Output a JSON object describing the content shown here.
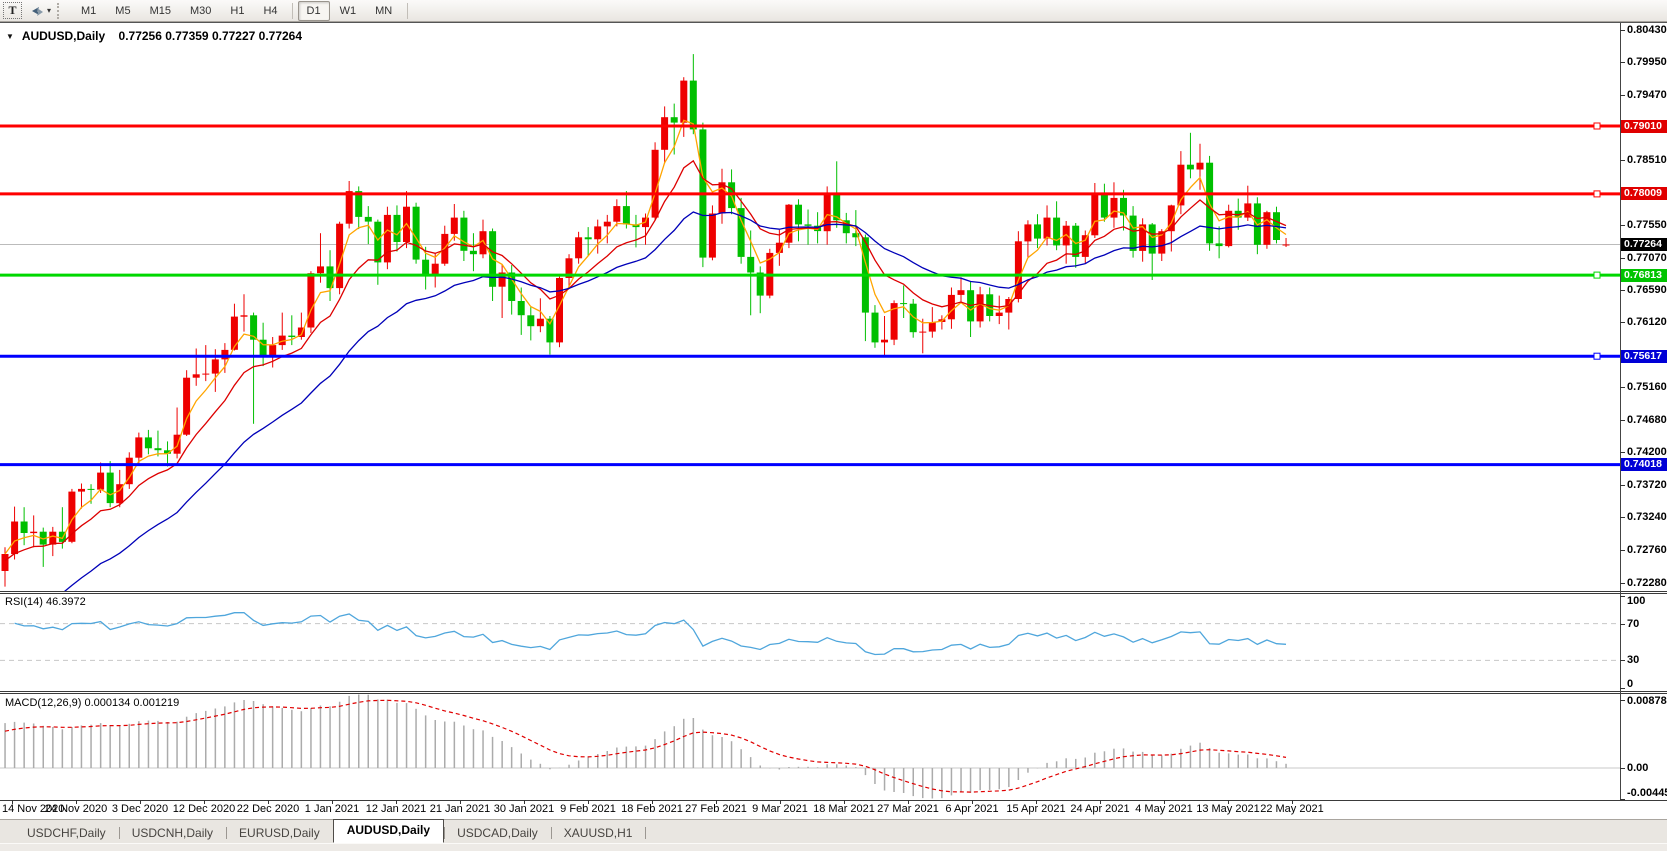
{
  "toolbar": {
    "text_tool_label": "T",
    "timeframes": [
      "M1",
      "M5",
      "M15",
      "M30",
      "H1",
      "H4",
      "D1",
      "W1",
      "MN"
    ],
    "active_timeframe": "D1"
  },
  "chart": {
    "title_symbol": "AUDUSD,Daily",
    "title_ohlc": "0.77256 0.77359 0.77227 0.77264"
  },
  "rsi_panel": {
    "label": "RSI(14) 46.3972",
    "axis_labels": [
      "100",
      "70",
      "30",
      "0"
    ],
    "levels": [
      70,
      30
    ]
  },
  "macd_panel": {
    "label": "MACD(12,26,9) 0.000134 0.001219",
    "axis_labels": [
      "0.008782",
      "0.00",
      "-0.00445"
    ]
  },
  "tabs": [
    "USDCHF,Daily",
    "USDCNH,Daily",
    "EURUSD,Daily",
    "AUDUSD,Daily",
    "USDCAD,Daily",
    "XAUUSD,H1"
  ],
  "active_tab": "AUDUSD,Daily",
  "chart_data": {
    "type": "candlestick",
    "symbol": "AUDUSD",
    "timeframe": "Daily",
    "colors": {
      "bull": "#ee0000",
      "bear": "#00bf00",
      "rsi_line": "#4fa6dc",
      "macd_hist": "#ababab",
      "macd_signal": "#e00000",
      "ma_fast": "#ffa500",
      "ma_mid": "#dd0000",
      "ma_slow": "#0000b8",
      "current_line": "#bbbbbb"
    },
    "y_range": [
      0.7216,
      0.8047
    ],
    "y_ticks": [
      "0.80430",
      "0.79950",
      "0.79470",
      "0.78510",
      "0.77550",
      "0.77070",
      "0.76590",
      "0.76120",
      "0.75160",
      "0.74680",
      "0.74200",
      "0.73720",
      "0.73240",
      "0.72760",
      "0.72280"
    ],
    "horizontal_lines": [
      {
        "label": "0.79010",
        "price": 0.7901,
        "color": "#ff0000",
        "badge": "#e00000",
        "handle": true
      },
      {
        "label": "0.78009",
        "price": 0.78009,
        "color": "#ff0000",
        "badge": "#e00000",
        "handle": true
      },
      {
        "label": "0.76813",
        "price": 0.76813,
        "color": "#00d800",
        "badge": "#00c400",
        "handle": true
      },
      {
        "label": "0.75617",
        "price": 0.75617,
        "color": "#0000ff",
        "badge": "#0000d6",
        "handle": true
      },
      {
        "label": "0.74018",
        "price": 0.74018,
        "color": "#0000ff",
        "badge": "#0000d6",
        "handle": false
      }
    ],
    "current_price": {
      "label": "0.77264",
      "price": 0.77264,
      "badge": "#000000"
    },
    "x_labels": [
      "14 Nov 2020",
      "24 Nov 2020",
      "3 Dec 2020",
      "12 Dec 2020",
      "22 Dec 2020",
      "1 Jan 2021",
      "12 Jan 2021",
      "21 Jan 2021",
      "30 Jan 2021",
      "9 Feb 2021",
      "18 Feb 2021",
      "27 Feb 2021",
      "9 Mar 2021",
      "18 Mar 2021",
      "27 Mar 2021",
      "6 Apr 2021",
      "15 Apr 2021",
      "24 Apr 2021",
      "4 May 2021",
      "13 May 2021",
      "22 May 2021"
    ],
    "moving_averages": [
      {
        "period": 4,
        "seed": null,
        "color": "#ffa500"
      },
      {
        "period": 10,
        "seed": 0.7258,
        "color": "#dd0000"
      },
      {
        "period": 25,
        "seed": 0.715,
        "color": "#0000b8"
      }
    ],
    "indicators": {
      "rsi": {
        "period": 14,
        "value": "46.3972",
        "seed_gain": 0.002,
        "seed_loss": 0.001
      },
      "macd": {
        "fast": 12,
        "slow": 26,
        "signal": 9,
        "seed_fast": 0.724,
        "seed_slow": 0.718,
        "seed_signal": 0.0045,
        "values": [
          "0.000134",
          "0.001219"
        ]
      }
    },
    "candles": [
      [
        0.7245,
        0.728,
        0.7222,
        0.727
      ],
      [
        0.727,
        0.734,
        0.7262,
        0.7318
      ],
      [
        0.7318,
        0.7339,
        0.7283,
        0.7301
      ],
      [
        0.7301,
        0.7327,
        0.728,
        0.7303
      ],
      [
        0.7303,
        0.7309,
        0.7251,
        0.7284
      ],
      [
        0.7284,
        0.731,
        0.7267,
        0.7303
      ],
      [
        0.7303,
        0.7339,
        0.7278,
        0.7288
      ],
      [
        0.7288,
        0.7366,
        0.7286,
        0.7362
      ],
      [
        0.7362,
        0.7374,
        0.7337,
        0.7366
      ],
      [
        0.7366,
        0.7373,
        0.7344,
        0.7365
      ],
      [
        0.7365,
        0.7405,
        0.736,
        0.739
      ],
      [
        0.739,
        0.7407,
        0.7339,
        0.7345
      ],
      [
        0.7345,
        0.7394,
        0.7339,
        0.7373
      ],
      [
        0.7373,
        0.742,
        0.7366,
        0.7412
      ],
      [
        0.7412,
        0.7449,
        0.7401,
        0.7442
      ],
      [
        0.7442,
        0.7453,
        0.7417,
        0.7426
      ],
      [
        0.7426,
        0.7452,
        0.7414,
        0.7423
      ],
      [
        0.7423,
        0.7436,
        0.7399,
        0.7418
      ],
      [
        0.7418,
        0.7486,
        0.7411,
        0.7446
      ],
      [
        0.7446,
        0.7541,
        0.7444,
        0.753
      ],
      [
        0.753,
        0.7573,
        0.7518,
        0.7535
      ],
      [
        0.7535,
        0.7578,
        0.7525,
        0.7536
      ],
      [
        0.7536,
        0.7572,
        0.7509,
        0.7557
      ],
      [
        0.7557,
        0.7581,
        0.7537,
        0.7571
      ],
      [
        0.7571,
        0.7639,
        0.757,
        0.762
      ],
      [
        0.762,
        0.7653,
        0.7598,
        0.7622
      ],
      [
        0.7622,
        0.7626,
        0.7462,
        0.7586
      ],
      [
        0.7586,
        0.7611,
        0.7547,
        0.756
      ],
      [
        0.756,
        0.759,
        0.7545,
        0.7578
      ],
      [
        0.7578,
        0.7626,
        0.7571,
        0.7592
      ],
      [
        0.7592,
        0.7622,
        0.7578,
        0.759
      ],
      [
        0.759,
        0.7626,
        0.7586,
        0.7604
      ],
      [
        0.7604,
        0.7687,
        0.7596,
        0.7684
      ],
      [
        0.7684,
        0.7743,
        0.767,
        0.7694
      ],
      [
        0.7694,
        0.7718,
        0.7643,
        0.7662
      ],
      [
        0.7662,
        0.776,
        0.7653,
        0.7757
      ],
      [
        0.7757,
        0.782,
        0.775,
        0.7805
      ],
      [
        0.7805,
        0.7812,
        0.7749,
        0.7767
      ],
      [
        0.7767,
        0.7783,
        0.7727,
        0.776
      ],
      [
        0.776,
        0.7763,
        0.7667,
        0.77
      ],
      [
        0.77,
        0.7782,
        0.769,
        0.777
      ],
      [
        0.777,
        0.7784,
        0.7716,
        0.773
      ],
      [
        0.773,
        0.7805,
        0.7721,
        0.7782
      ],
      [
        0.7782,
        0.7788,
        0.7698,
        0.7704
      ],
      [
        0.7704,
        0.7723,
        0.766,
        0.768
      ],
      [
        0.768,
        0.7714,
        0.7663,
        0.7698
      ],
      [
        0.7698,
        0.7754,
        0.7695,
        0.7742
      ],
      [
        0.7742,
        0.7786,
        0.7732,
        0.7766
      ],
      [
        0.7766,
        0.7776,
        0.7702,
        0.7717
      ],
      [
        0.7717,
        0.7743,
        0.7687,
        0.7712
      ],
      [
        0.7712,
        0.7763,
        0.7706,
        0.7746
      ],
      [
        0.7746,
        0.775,
        0.7643,
        0.7664
      ],
      [
        0.7664,
        0.7697,
        0.7618,
        0.7685
      ],
      [
        0.7685,
        0.7696,
        0.7623,
        0.7643
      ],
      [
        0.7643,
        0.7663,
        0.7593,
        0.7622
      ],
      [
        0.7622,
        0.7634,
        0.7585,
        0.7606
      ],
      [
        0.7606,
        0.7647,
        0.7597,
        0.7617
      ],
      [
        0.7617,
        0.7621,
        0.7564,
        0.7582
      ],
      [
        0.7582,
        0.7679,
        0.7575,
        0.7677
      ],
      [
        0.7677,
        0.7712,
        0.7664,
        0.7706
      ],
      [
        0.7706,
        0.7745,
        0.7698,
        0.7737
      ],
      [
        0.7737,
        0.7752,
        0.771,
        0.7734
      ],
      [
        0.7734,
        0.7763,
        0.7713,
        0.7753
      ],
      [
        0.7753,
        0.777,
        0.7728,
        0.776
      ],
      [
        0.776,
        0.7793,
        0.7753,
        0.7783
      ],
      [
        0.7783,
        0.7805,
        0.775,
        0.7756
      ],
      [
        0.7756,
        0.777,
        0.7722,
        0.7752
      ],
      [
        0.7752,
        0.7772,
        0.7726,
        0.7766
      ],
      [
        0.7766,
        0.7877,
        0.7762,
        0.7866
      ],
      [
        0.7866,
        0.793,
        0.7846,
        0.7914
      ],
      [
        0.7914,
        0.7934,
        0.7859,
        0.7906
      ],
      [
        0.7906,
        0.7973,
        0.7885,
        0.7968
      ],
      [
        0.7968,
        0.8007,
        0.7889,
        0.7896
      ],
      [
        0.7896,
        0.7906,
        0.7693,
        0.7707
      ],
      [
        0.7707,
        0.7784,
        0.7703,
        0.7772
      ],
      [
        0.7772,
        0.7838,
        0.7757,
        0.7818
      ],
      [
        0.7818,
        0.7837,
        0.7771,
        0.778
      ],
      [
        0.778,
        0.7795,
        0.7698,
        0.7708
      ],
      [
        0.7708,
        0.7747,
        0.7622,
        0.7685
      ],
      [
        0.7685,
        0.7694,
        0.7625,
        0.7651
      ],
      [
        0.7651,
        0.772,
        0.7647,
        0.7714
      ],
      [
        0.7714,
        0.7748,
        0.7695,
        0.7729
      ],
      [
        0.7729,
        0.7786,
        0.7721,
        0.7785
      ],
      [
        0.7785,
        0.7793,
        0.7731,
        0.7756
      ],
      [
        0.7756,
        0.7778,
        0.7726,
        0.7754
      ],
      [
        0.7754,
        0.7774,
        0.7728,
        0.7746
      ],
      [
        0.7746,
        0.7812,
        0.7726,
        0.7803
      ],
      [
        0.7803,
        0.7849,
        0.7751,
        0.7762
      ],
      [
        0.7762,
        0.7773,
        0.7728,
        0.7743
      ],
      [
        0.7743,
        0.7777,
        0.7724,
        0.7737
      ],
      [
        0.7737,
        0.7741,
        0.7584,
        0.7626
      ],
      [
        0.7626,
        0.7637,
        0.7574,
        0.7582
      ],
      [
        0.7582,
        0.7621,
        0.7562,
        0.7586
      ],
      [
        0.7586,
        0.7644,
        0.7578,
        0.764
      ],
      [
        0.764,
        0.7666,
        0.7618,
        0.7639
      ],
      [
        0.7639,
        0.7646,
        0.7589,
        0.7597
      ],
      [
        0.7597,
        0.7617,
        0.7566,
        0.7598
      ],
      [
        0.7598,
        0.7634,
        0.7589,
        0.7612
      ],
      [
        0.7612,
        0.7622,
        0.7601,
        0.7616
      ],
      [
        0.7616,
        0.7663,
        0.7602,
        0.7652
      ],
      [
        0.7652,
        0.7678,
        0.764,
        0.7659
      ],
      [
        0.7659,
        0.7672,
        0.759,
        0.7613
      ],
      [
        0.7613,
        0.7664,
        0.7604,
        0.7653
      ],
      [
        0.7653,
        0.7663,
        0.7613,
        0.7621
      ],
      [
        0.7621,
        0.7651,
        0.7609,
        0.7626
      ],
      [
        0.7626,
        0.7649,
        0.7601,
        0.7646
      ],
      [
        0.7646,
        0.7746,
        0.7641,
        0.7731
      ],
      [
        0.7731,
        0.7762,
        0.7708,
        0.7756
      ],
      [
        0.7756,
        0.7771,
        0.7721,
        0.7735
      ],
      [
        0.7735,
        0.7784,
        0.7725,
        0.7766
      ],
      [
        0.7766,
        0.779,
        0.7718,
        0.7725
      ],
      [
        0.7725,
        0.7761,
        0.7698,
        0.7754
      ],
      [
        0.7754,
        0.7758,
        0.7692,
        0.7708
      ],
      [
        0.7708,
        0.7747,
        0.7699,
        0.774
      ],
      [
        0.774,
        0.7817,
        0.7736,
        0.7802
      ],
      [
        0.7802,
        0.7816,
        0.776,
        0.7766
      ],
      [
        0.7766,
        0.7818,
        0.7751,
        0.7795
      ],
      [
        0.7795,
        0.7807,
        0.7747,
        0.7769
      ],
      [
        0.7769,
        0.7783,
        0.7707,
        0.7717
      ],
      [
        0.7717,
        0.7765,
        0.7701,
        0.7756
      ],
      [
        0.7756,
        0.7758,
        0.7674,
        0.7713
      ],
      [
        0.7713,
        0.7749,
        0.7702,
        0.7746
      ],
      [
        0.7746,
        0.7785,
        0.7716,
        0.7784
      ],
      [
        0.7784,
        0.7864,
        0.7771,
        0.7844
      ],
      [
        0.7844,
        0.7891,
        0.7824,
        0.7837
      ],
      [
        0.7837,
        0.7875,
        0.7807,
        0.7847
      ],
      [
        0.7847,
        0.7857,
        0.7717,
        0.7728
      ],
      [
        0.7728,
        0.7753,
        0.7706,
        0.7724
      ],
      [
        0.7724,
        0.7785,
        0.7722,
        0.7776
      ],
      [
        0.7776,
        0.7794,
        0.7748,
        0.7766
      ],
      [
        0.7766,
        0.7813,
        0.7761,
        0.7787
      ],
      [
        0.7787,
        0.7796,
        0.7712,
        0.7726
      ],
      [
        0.7726,
        0.7776,
        0.772,
        0.7774
      ],
      [
        0.7774,
        0.7782,
        0.7728,
        0.7733
      ],
      [
        0.77256,
        0.77359,
        0.77227,
        0.77264
      ]
    ]
  }
}
